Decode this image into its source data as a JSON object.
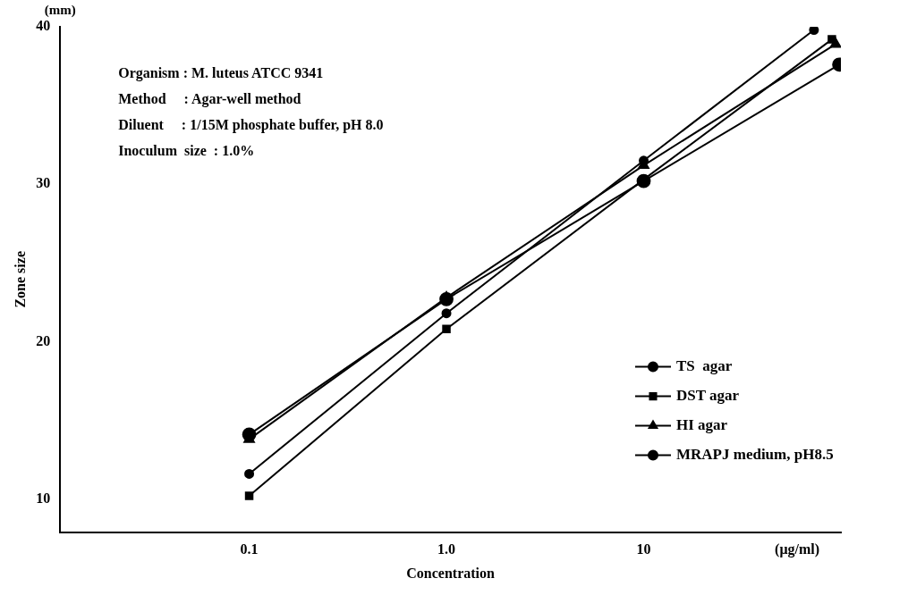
{
  "chart_data": {
    "type": "line",
    "xlabel": "Concentration",
    "ylabel": "Zone size",
    "log": "x",
    "xlim": [
      0.011,
      100
    ],
    "xticks": [
      {
        "value": 0.1,
        "label": "0.1"
      },
      {
        "value": 1,
        "label": "1.0"
      },
      10,
      {
        "value": 60,
        "label": "(μg/ml)"
      }
    ],
    "ylim": [
      7.9,
      40
    ],
    "yticks": [
      10,
      20,
      30,
      40
    ],
    "grid": false,
    "legend": "bottom right",
    "line_style": "solid",
    "annotations": [
      "(mm)",
      "Organism : M. luteus ATCC 9341",
      "Method     : Agar-well method",
      "Diluent     : 1/15M phosphate buffer, pH 8.0",
      "Inoculum  size  : 1.0%"
    ],
    "series": [
      {
        "name": "TS  agar",
        "color": "#000000",
        "marker": "circle",
        "x": [
          0.1,
          1,
          10,
          73
        ],
        "values": [
          11.6,
          21.8,
          31.5,
          39.8
        ]
      },
      {
        "name": "DST agar",
        "color": "#000000",
        "marker": "square",
        "x": [
          0.1,
          1,
          10,
          90
        ],
        "values": [
          10.2,
          20.8,
          30.3,
          39.2
        ]
      },
      {
        "name": "HI agar",
        "color": "#000000",
        "marker": "triangle",
        "x": [
          0.1,
          1,
          10,
          94
        ],
        "values": [
          13.8,
          22.8,
          31.2,
          38.9
        ]
      },
      {
        "name": "MRAPJ medium, pH8.5",
        "color": "#000000",
        "marker": "circle",
        "x": [
          0.1,
          1,
          10,
          98
        ],
        "values": [
          14.1,
          22.7,
          30.2,
          37.6
        ]
      }
    ]
  }
}
